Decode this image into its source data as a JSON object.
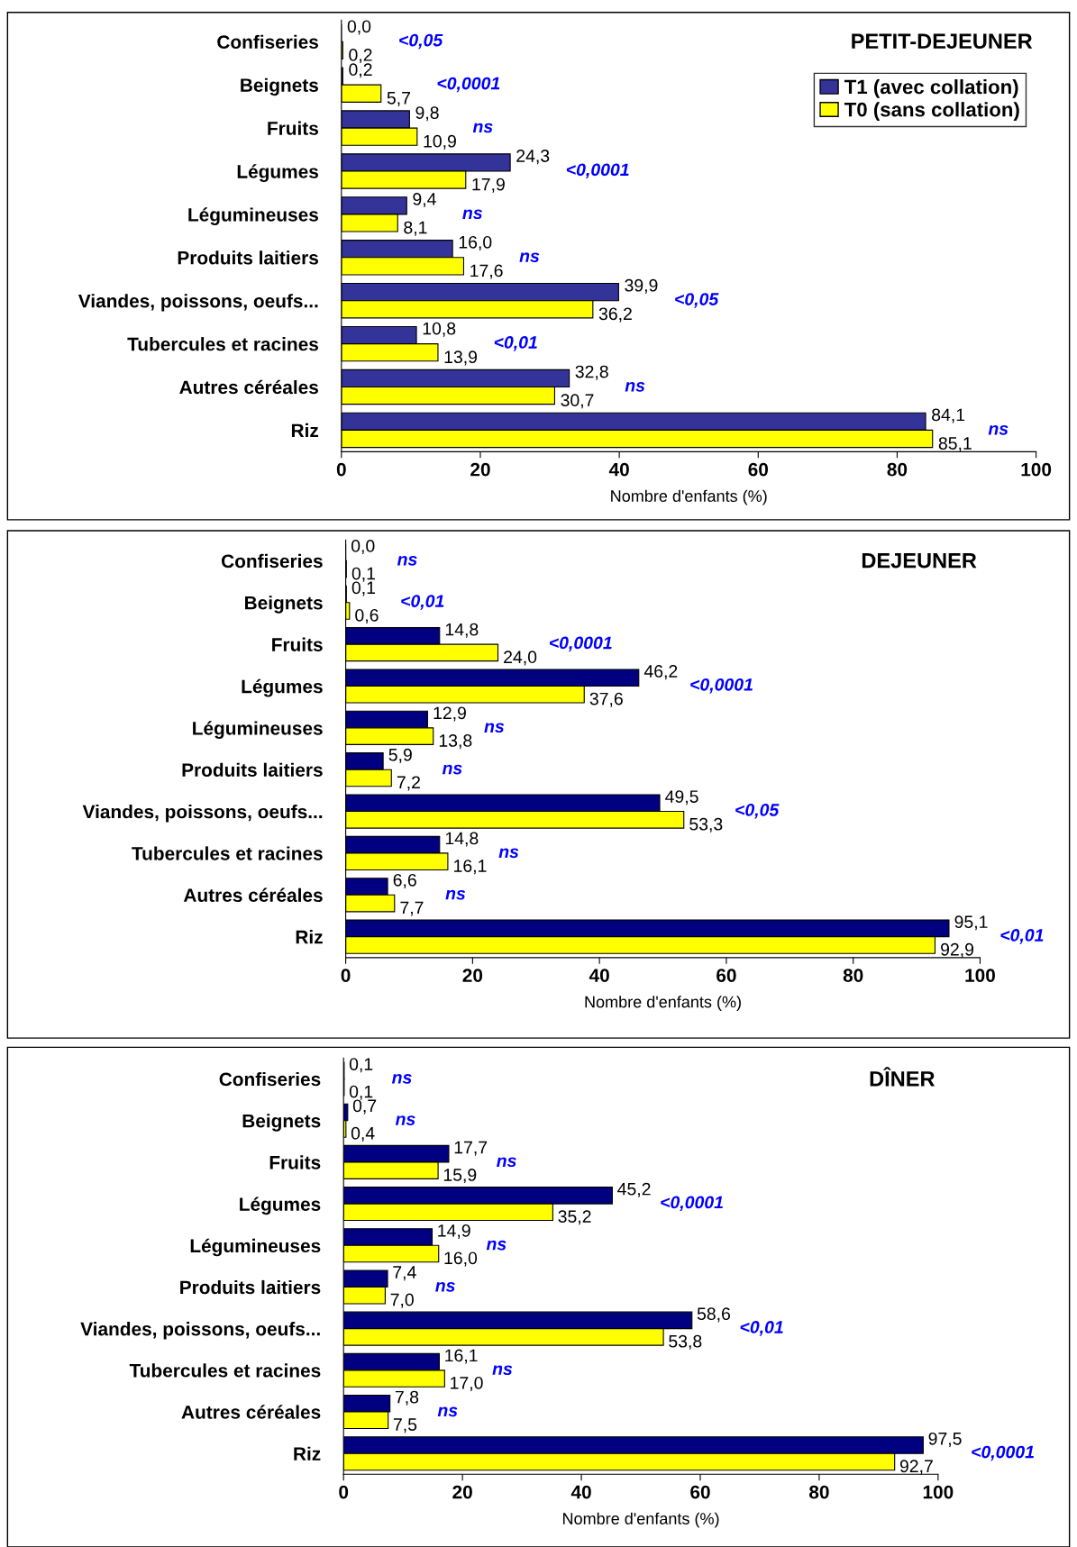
{
  "chart_data": [
    {
      "type": "bar",
      "orientation": "horizontal",
      "title": "PETIT-DEJEUNER",
      "xlabel": "Nombre d'enfants (%)",
      "categories": [
        "Confiseries",
        "Beignets",
        "Fruits",
        "Légumes",
        "Légumineuses",
        "Produits laitiers",
        "Viandes, poissons, oeufs...",
        "Tubercules et racines",
        "Autres céréales",
        "Riz"
      ],
      "series": [
        {
          "name": "T1 (avec collation)",
          "color": "#333399",
          "values": [
            0.0,
            0.2,
            9.8,
            24.3,
            9.4,
            16.0,
            39.9,
            10.8,
            32.8,
            84.1
          ],
          "value_labels": [
            "0,0",
            "0,2",
            "9,8",
            "24,3",
            "9,4",
            "16,0",
            "39,9",
            "10,8",
            "32,8",
            "84,1"
          ]
        },
        {
          "name": "T0 (sans collation)",
          "color": "#ffff00",
          "values": [
            0.2,
            5.7,
            10.9,
            17.9,
            8.1,
            17.6,
            36.2,
            13.9,
            30.7,
            85.1
          ],
          "value_labels": [
            "0,2",
            "5,7",
            "10,9",
            "17,9",
            "8,1",
            "17,6",
            "36,2",
            "13,9",
            "30,7",
            "85,1"
          ]
        }
      ],
      "xlim": [
        0,
        100
      ],
      "xticks": [
        0,
        20,
        40,
        60,
        80,
        100
      ],
      "legend": "top right",
      "annotations": [
        "<0,05",
        "<0,0001",
        "ns",
        "<0,0001",
        "ns",
        "ns",
        "<0,05",
        "<0,01",
        "ns",
        "ns"
      ]
    },
    {
      "type": "bar",
      "orientation": "horizontal",
      "title": "DEJEUNER",
      "xlabel": "Nombre d'enfants (%)",
      "categories": [
        "Confiseries",
        "Beignets",
        "Fruits",
        "Légumes",
        "Légumineuses",
        "Produits laitiers",
        "Viandes, poissons, oeufs...",
        "Tubercules et racines",
        "Autres céréales",
        "Riz"
      ],
      "series": [
        {
          "color": "#000080",
          "values": [
            0.0,
            0.1,
            14.8,
            46.2,
            12.9,
            5.9,
            49.5,
            14.8,
            6.6,
            95.1
          ],
          "value_labels": [
            "0,0",
            "0,1",
            "14,8",
            "46,2",
            "12,9",
            "5,9",
            "49,5",
            "14,8",
            "6,6",
            "95,1"
          ]
        },
        {
          "color": "#ffff00",
          "values": [
            0.1,
            0.6,
            24.0,
            37.6,
            13.8,
            7.2,
            53.3,
            16.1,
            7.7,
            92.9
          ],
          "value_labels": [
            "0,1",
            "0,6",
            "24,0",
            "37,6",
            "13,8",
            "7,2",
            "53,3",
            "16,1",
            "7,7",
            "92,9"
          ]
        }
      ],
      "xlim": [
        0,
        100
      ],
      "xticks": [
        0,
        20,
        40,
        60,
        80,
        100
      ],
      "annotations": [
        "ns",
        "<0,01",
        "<0,0001",
        "<0,0001",
        "ns",
        "ns",
        "<0,05",
        "ns",
        "ns",
        "<0,01"
      ]
    },
    {
      "type": "bar",
      "orientation": "horizontal",
      "title": "DÎNER",
      "xlabel": "Nombre d'enfants (%)",
      "categories": [
        "Confiseries",
        "Beignets",
        "Fruits",
        "Légumes",
        "Légumineuses",
        "Produits laitiers",
        "Viandes, poissons, oeufs...",
        "Tubercules et racines",
        "Autres céréales",
        "Riz"
      ],
      "series": [
        {
          "color": "#000080",
          "values": [
            0.1,
            0.7,
            17.7,
            45.2,
            14.9,
            7.4,
            58.6,
            16.1,
            7.8,
            97.5
          ],
          "value_labels": [
            "0,1",
            "0,7",
            "17,7",
            "45,2",
            "14,9",
            "7,4",
            "58,6",
            "16,1",
            "7,8",
            "97,5"
          ]
        },
        {
          "color": "#ffff00",
          "values": [
            0.1,
            0.4,
            15.9,
            35.2,
            16.0,
            7.0,
            53.8,
            17.0,
            7.5,
            92.7
          ],
          "value_labels": [
            "0,1",
            "0,4",
            "15,9",
            "35,2",
            "16,0",
            "7,0",
            "53,8",
            "17,0",
            "7,5",
            "92,7"
          ]
        }
      ],
      "xlim": [
        0,
        100
      ],
      "xticks": [
        0,
        20,
        40,
        60,
        80,
        100
      ],
      "annotations": [
        "ns",
        "ns",
        "ns",
        "<0,0001",
        "ns",
        "ns",
        "<0,01",
        "ns",
        "ns",
        "<0,0001"
      ]
    }
  ]
}
